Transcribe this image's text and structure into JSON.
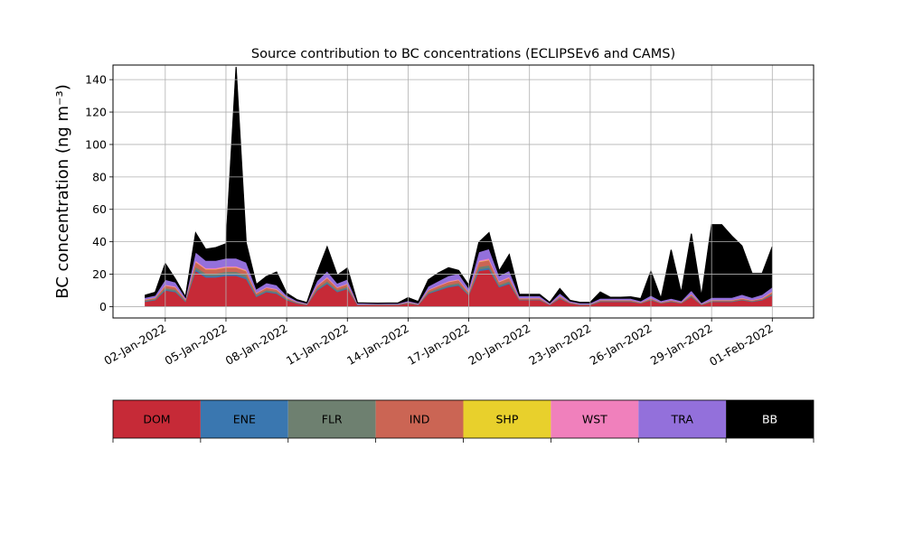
{
  "chart_data": {
    "type": "area",
    "stacked": true,
    "title": "Source contribution to BC concentrations (ECLIPSEv6 and CAMS)",
    "ylabel": "BC concentration (ng m⁻³)",
    "xlabel": "",
    "ylim": [
      -7,
      149
    ],
    "yticks": [
      0,
      20,
      40,
      60,
      80,
      100,
      120,
      140
    ],
    "xlim": [
      "2021-12-30T10:00",
      "2022-02-03T01:00"
    ],
    "xticks": [
      "02-Jan-2022",
      "05-Jan-2022",
      "08-Jan-2022",
      "11-Jan-2022",
      "14-Jan-2022",
      "17-Jan-2022",
      "20-Jan-2022",
      "23-Jan-2022",
      "26-Jan-2022",
      "29-Jan-2022",
      "01-Feb-2022"
    ],
    "xtick_dates": [
      "2022-01-02",
      "2022-01-05",
      "2022-01-08",
      "2022-01-11",
      "2022-01-14",
      "2022-01-17",
      "2022-01-20",
      "2022-01-23",
      "2022-01-26",
      "2022-01-29",
      "2022-02-01"
    ],
    "grid": true,
    "legend_position": "below-chart",
    "x": [
      "2022-01-01T00:00",
      "2022-01-01T12:00",
      "2022-01-02T00:00",
      "2022-01-02T12:00",
      "2022-01-03T00:00",
      "2022-01-03T12:00",
      "2022-01-04T00:00",
      "2022-01-04T12:00",
      "2022-01-05T00:00",
      "2022-01-05T12:00",
      "2022-01-06T00:00",
      "2022-01-06T12:00",
      "2022-01-07T00:00",
      "2022-01-07T12:00",
      "2022-01-08T00:00",
      "2022-01-08T12:00",
      "2022-01-09T00:00",
      "2022-01-09T12:00",
      "2022-01-10T00:00",
      "2022-01-10T12:00",
      "2022-01-11T00:00",
      "2022-01-11T12:00",
      "2022-01-12T00:00",
      "2022-01-12T12:00",
      "2022-01-13T00:00",
      "2022-01-13T12:00",
      "2022-01-14T00:00",
      "2022-01-14T12:00",
      "2022-01-15T00:00",
      "2022-01-15T12:00",
      "2022-01-16T00:00",
      "2022-01-16T12:00",
      "2022-01-17T00:00",
      "2022-01-17T12:00",
      "2022-01-18T00:00",
      "2022-01-18T12:00",
      "2022-01-19T00:00",
      "2022-01-19T12:00",
      "2022-01-20T00:00",
      "2022-01-20T12:00",
      "2022-01-21T00:00",
      "2022-01-21T12:00",
      "2022-01-22T00:00",
      "2022-01-22T12:00",
      "2022-01-23T00:00",
      "2022-01-23T12:00",
      "2022-01-24T00:00",
      "2022-01-24T12:00",
      "2022-01-25T00:00",
      "2022-01-25T12:00",
      "2022-01-26T00:00",
      "2022-01-26T12:00",
      "2022-01-27T00:00",
      "2022-01-27T12:00",
      "2022-01-28T00:00",
      "2022-01-28T12:00",
      "2022-01-29T00:00",
      "2022-01-29T12:00",
      "2022-01-30T00:00",
      "2022-01-30T12:00",
      "2022-01-31T00:00",
      "2022-01-31T12:00",
      "2022-02-01T00:00"
    ],
    "series": [
      {
        "name": "DOM",
        "color": "#c62a37",
        "values": [
          3,
          4,
          10,
          9,
          3,
          22,
          18,
          18,
          19,
          19,
          17,
          6,
          9,
          8,
          4,
          2,
          1,
          10,
          14,
          9,
          11,
          1,
          1,
          1,
          1,
          1,
          2,
          1,
          8,
          10,
          12,
          13,
          7,
          22,
          23,
          12,
          14,
          4,
          4,
          4,
          1,
          5,
          2,
          1,
          1,
          3,
          3,
          3,
          3,
          2,
          4,
          2,
          3,
          2,
          6,
          1,
          3,
          3,
          3,
          4,
          3,
          4,
          7
        ]
      },
      {
        "name": "ENE",
        "color": "#3a77b0",
        "values": [
          0.3,
          0.3,
          0.5,
          0.5,
          0.3,
          1,
          1,
          1,
          1,
          1,
          1,
          0.5,
          0.5,
          0.5,
          0.3,
          0.2,
          0.1,
          0.5,
          0.7,
          0.5,
          0.5,
          0.1,
          0.1,
          0.1,
          0.1,
          0.1,
          0.1,
          0.1,
          0.4,
          0.5,
          0.6,
          0.6,
          0.3,
          1,
          1,
          0.6,
          0.7,
          0.2,
          0.2,
          0.2,
          0.1,
          0.3,
          0.1,
          0.1,
          0.1,
          0.2,
          0.2,
          0.2,
          0.2,
          0.1,
          0.2,
          0.1,
          0.2,
          0.1,
          0.3,
          0.1,
          0.2,
          0.2,
          0.2,
          0.2,
          0.2,
          0.2,
          0.4
        ]
      },
      {
        "name": "FLR",
        "color": "#6e8070",
        "values": [
          0.5,
          0.5,
          1,
          1,
          0.5,
          1.5,
          1.5,
          1.5,
          1.5,
          1.5,
          1.5,
          0.8,
          0.8,
          0.8,
          0.5,
          0.3,
          0.2,
          0.8,
          1,
          0.8,
          0.8,
          0.2,
          0.2,
          0.2,
          0.2,
          0.2,
          0.3,
          0.2,
          0.6,
          0.8,
          0.9,
          1,
          0.5,
          1.5,
          1.5,
          0.9,
          1,
          0.3,
          0.3,
          0.3,
          0.2,
          0.4,
          0.2,
          0.2,
          0.2,
          0.3,
          0.3,
          0.3,
          0.3,
          0.2,
          0.3,
          0.2,
          0.3,
          0.2,
          0.5,
          0.2,
          0.3,
          0.3,
          0.3,
          0.3,
          0.3,
          0.3,
          0.6
        ]
      },
      {
        "name": "IND",
        "color": "#cb6554",
        "values": [
          0.5,
          0.6,
          1.5,
          1.4,
          0.5,
          3,
          2.5,
          2.5,
          2.6,
          2.6,
          2.4,
          1,
          1.3,
          1.2,
          0.6,
          0.3,
          0.2,
          1.4,
          2,
          1.3,
          1.5,
          0.2,
          0.2,
          0.2,
          0.2,
          0.2,
          0.3,
          0.2,
          1.1,
          1.4,
          1.7,
          1.8,
          1,
          3,
          3.2,
          1.7,
          2,
          0.6,
          0.6,
          0.6,
          0.2,
          0.7,
          0.3,
          0.2,
          0.2,
          0.4,
          0.4,
          0.4,
          0.4,
          0.3,
          0.6,
          0.3,
          0.4,
          0.3,
          0.8,
          0.2,
          0.4,
          0.4,
          0.4,
          0.6,
          0.4,
          0.6,
          1
        ]
      },
      {
        "name": "SHP",
        "color": "#e8d02c",
        "values": [
          0.05,
          0.05,
          0.1,
          0.1,
          0.05,
          0.2,
          0.2,
          0.2,
          0.2,
          0.2,
          0.2,
          0.1,
          0.1,
          0.1,
          0.05,
          0.03,
          0.02,
          0.1,
          0.1,
          0.1,
          0.1,
          0.02,
          0.02,
          0.02,
          0.02,
          0.02,
          0.03,
          0.02,
          0.1,
          0.1,
          0.1,
          0.1,
          0.1,
          0.2,
          0.2,
          0.1,
          0.1,
          0.05,
          0.05,
          0.05,
          0.02,
          0.05,
          0.02,
          0.02,
          0.02,
          0.03,
          0.03,
          0.03,
          0.03,
          0.02,
          0.05,
          0.02,
          0.03,
          0.02,
          0.05,
          0.02,
          0.03,
          0.03,
          0.03,
          0.05,
          0.03,
          0.05,
          0.1
        ]
      },
      {
        "name": "WST",
        "color": "#f080bc",
        "values": [
          0.2,
          0.2,
          0.5,
          0.5,
          0.2,
          0.8,
          0.7,
          0.7,
          0.7,
          0.7,
          0.7,
          0.3,
          0.4,
          0.4,
          0.2,
          0.1,
          0.1,
          0.4,
          0.6,
          0.4,
          0.4,
          0.1,
          0.1,
          0.1,
          0.1,
          0.1,
          0.1,
          0.1,
          0.3,
          0.4,
          0.5,
          0.5,
          0.3,
          0.8,
          0.9,
          0.5,
          0.6,
          0.2,
          0.2,
          0.2,
          0.1,
          0.2,
          0.1,
          0.1,
          0.1,
          0.1,
          0.1,
          0.1,
          0.1,
          0.1,
          0.2,
          0.1,
          0.1,
          0.1,
          0.3,
          0.1,
          0.2,
          0.2,
          0.2,
          0.3,
          0.2,
          0.3,
          0.4
        ]
      },
      {
        "name": "TRA",
        "color": "#9370db",
        "values": [
          1,
          1.2,
          3,
          2.5,
          1,
          5,
          4.5,
          4.5,
          4.8,
          4.8,
          4.5,
          2,
          2.5,
          2.3,
          1.2,
          0.7,
          0.4,
          2.6,
          3.5,
          2.3,
          2.5,
          0.5,
          0.4,
          0.3,
          0.3,
          0.3,
          0.7,
          0.5,
          2,
          2.6,
          3.2,
          3.3,
          2,
          5.2,
          5.8,
          3.2,
          3.7,
          1.2,
          1.2,
          1.2,
          0.5,
          1.5,
          0.7,
          0.5,
          0.5,
          1,
          1,
          1,
          1,
          0.7,
          1.5,
          0.8,
          1,
          0.8,
          2,
          0.7,
          1.4,
          1.4,
          1.4,
          2,
          1.4,
          2,
          2.5
        ]
      },
      {
        "name": "BB",
        "color": "#000000",
        "values": [
          1.5,
          2,
          10,
          2,
          0.5,
          12,
          7,
          8,
          9,
          118,
          12,
          3,
          4,
          8,
          1.5,
          0.7,
          0.5,
          5,
          15,
          5,
          7,
          0.2,
          0.2,
          0.2,
          0.3,
          0.3,
          2,
          1,
          4,
          5,
          5,
          2,
          2,
          6,
          10,
          3,
          10,
          1,
          1,
          1,
          0.5,
          3,
          0.5,
          0.5,
          0.5,
          4,
          0.7,
          0.7,
          1,
          1.5,
          15,
          1.5,
          30,
          5,
          35,
          4,
          45,
          45,
          38,
          30,
          15,
          13,
          25
        ]
      }
    ]
  }
}
